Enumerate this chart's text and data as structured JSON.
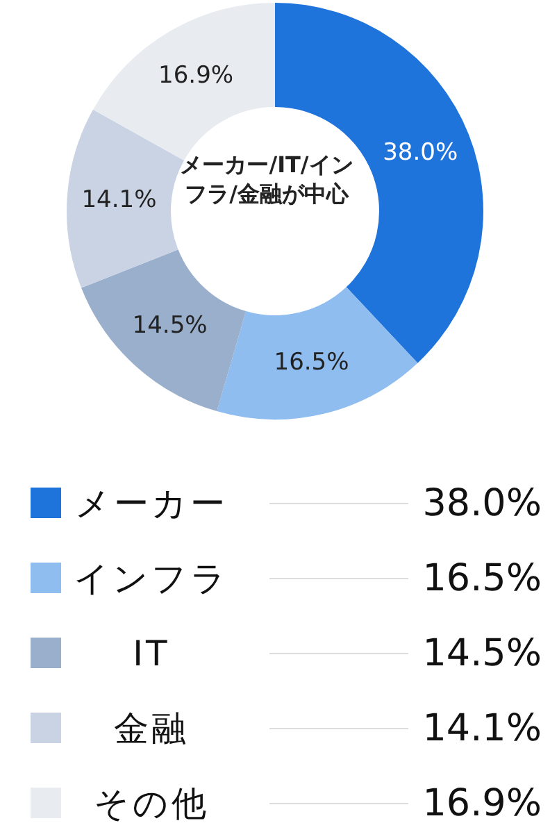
{
  "chart_data": {
    "type": "donut",
    "categories": [
      "メーカー",
      "インフラ",
      "IT",
      "金融",
      "その他"
    ],
    "values": [
      38.0,
      16.5,
      14.5,
      14.1,
      16.9
    ],
    "value_labels": [
      "38.0%",
      "16.5%",
      "14.5%",
      "14.1%",
      "16.9%"
    ],
    "colors": [
      "#1f74dc",
      "#8fbdf0",
      "#9aafcc",
      "#c9d3e3",
      "#e8ecf1"
    ],
    "annotations": [
      "メーカー/IT/インフラ/金融が中心"
    ],
    "legend": "bottom"
  }
}
